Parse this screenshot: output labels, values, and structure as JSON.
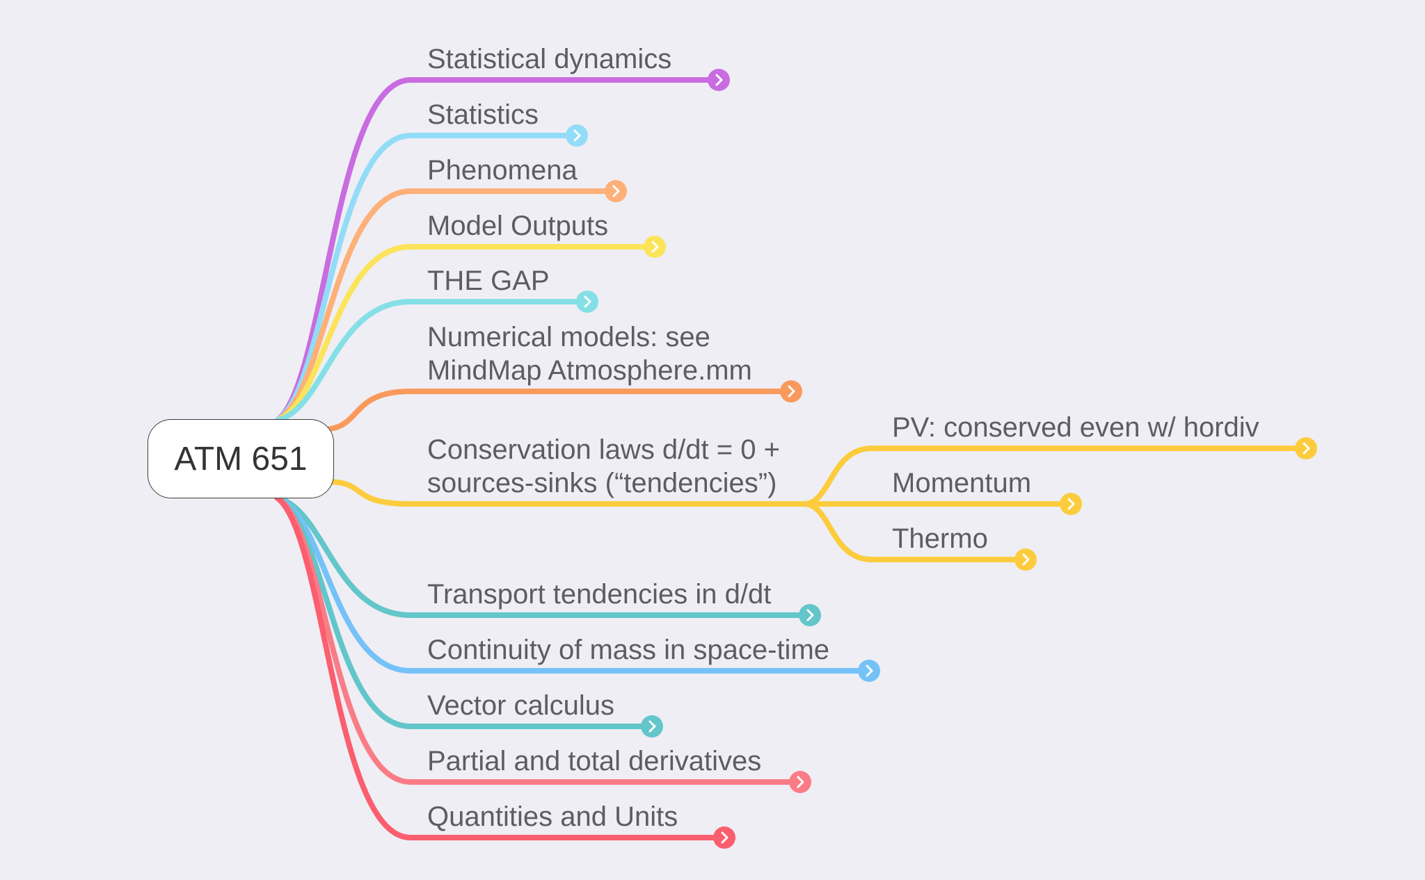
{
  "root": {
    "label": "ATM 651"
  },
  "branches": [
    {
      "lines": [
        "Statistical dynamics"
      ],
      "color": "#c86ce0"
    },
    {
      "lines": [
        "Statistics"
      ],
      "color": "#92dcf8"
    },
    {
      "lines": [
        "Phenomena"
      ],
      "color": "#fdb078"
    },
    {
      "lines": [
        "Model Outputs"
      ],
      "color": "#fbe45a"
    },
    {
      "lines": [
        "THE GAP"
      ],
      "color": "#84e0e6"
    },
    {
      "lines": [
        "Numerical models: see",
        "MindMap Atmosphere.mm"
      ],
      "color": "#f99a5c"
    },
    {
      "lines": [
        "Conservation laws d/dt = 0 +",
        "sources-sinks (“tendencies”)"
      ],
      "color": "#fccc3e",
      "children": [
        {
          "lines": [
            "PV: conserved even w/ hordiv"
          ],
          "color": "#fccc3e"
        },
        {
          "lines": [
            "Momentum"
          ],
          "color": "#fccc3e"
        },
        {
          "lines": [
            "Thermo"
          ],
          "color": "#fccc3e"
        }
      ]
    },
    {
      "lines": [
        "Transport tendencies in d/dt"
      ],
      "color": "#62c6ca"
    },
    {
      "lines": [
        "Continuity of mass in space-time"
      ],
      "color": "#74c2f8"
    },
    {
      "lines": [
        "Vector calculus"
      ],
      "color": "#62c6ca"
    },
    {
      "lines": [
        "Partial and total derivatives"
      ],
      "color": "#fa7c86"
    },
    {
      "lines": [
        "Quantities and Units"
      ],
      "color": "#fb5e6e"
    }
  ]
}
